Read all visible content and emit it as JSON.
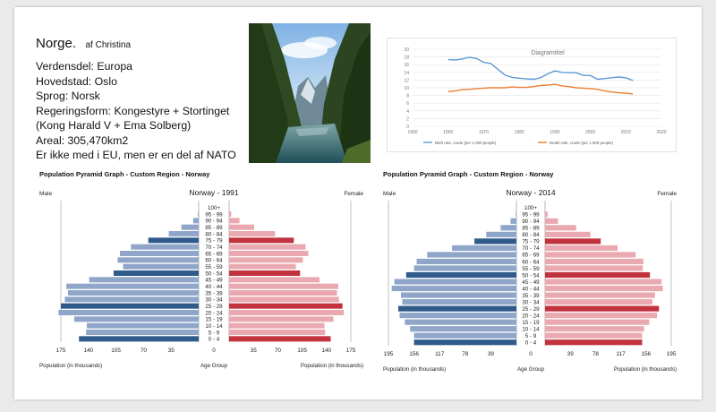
{
  "slide": {
    "title": "Norge.",
    "author": "af Christina",
    "info_lines": [
      "Verdensdel: Europa",
      "Hovedstad: Oslo",
      "Sprog: Norsk",
      "Regeringsform: Kongestyre + Stortinget",
      "(Kong Harald V + Ema Solberg)",
      "Areal: 305,470km2",
      "Er ikke med i EU, men er en del af NATO"
    ]
  },
  "photo": {
    "icon": "fjord-landscape-photo"
  },
  "chart_data": [
    {
      "type": "line",
      "title": "Diagramtitel",
      "x": [
        1960,
        1962,
        1964,
        1966,
        1968,
        1970,
        1972,
        1974,
        1976,
        1978,
        1980,
        1982,
        1984,
        1986,
        1988,
        1990,
        1992,
        1994,
        1996,
        1998,
        2000,
        2002,
        2004,
        2006,
        2008,
        2010,
        2012
      ],
      "xlim": [
        1950,
        2020
      ],
      "xticks": [
        "1950",
        "1960",
        "1970",
        "1980",
        "1990",
        "2000",
        "2010",
        "2020"
      ],
      "ylim": [
        0,
        20
      ],
      "yticks": [
        "0",
        "2",
        "4",
        "6",
        "8",
        "10",
        "12",
        "14",
        "16",
        "18",
        "20"
      ],
      "grid": true,
      "legend": "bottom",
      "series": [
        {
          "name": "Birth rate, crude (per 1,000 people)",
          "color": "#5b9bd5",
          "values": [
            17.3,
            17.2,
            17.5,
            17.9,
            17.6,
            16.6,
            16.3,
            14.8,
            13.3,
            12.7,
            12.5,
            12.3,
            12.2,
            12.6,
            13.6,
            14.4,
            14.0,
            13.9,
            13.9,
            13.2,
            13.2,
            12.2,
            12.4,
            12.6,
            12.8,
            12.6,
            11.9
          ]
        },
        {
          "name": "Death rate, crude (per 1,000 people)",
          "color": "#ed7d31",
          "values": [
            9.0,
            9.2,
            9.5,
            9.6,
            9.8,
            9.9,
            10.0,
            10.0,
            10.0,
            10.2,
            10.1,
            10.1,
            10.3,
            10.6,
            10.7,
            10.9,
            10.5,
            10.3,
            10.0,
            9.9,
            9.8,
            9.6,
            9.2,
            8.9,
            8.7,
            8.6,
            8.4
          ]
        }
      ]
    },
    {
      "type": "bar",
      "chart_title": "Population Pyramid Graph - Custom Region - Norway",
      "title": "Norway - 1991",
      "left_label": "Male",
      "right_label": "Female",
      "categories": [
        "0 - 4",
        "5 - 9",
        "10 - 14",
        "15 - 19",
        "20 - 24",
        "25 - 29",
        "30 - 34",
        "35 - 39",
        "40 - 44",
        "45 - 49",
        "50 - 54",
        "55 - 59",
        "60 - 64",
        "65 - 69",
        "70 - 74",
        "75 - 79",
        "80 - 84",
        "85 - 89",
        "90 - 94",
        "95 - 99",
        "100+"
      ],
      "series": [
        {
          "name": "Male",
          "values": [
            152,
            143,
            142,
            158,
            178,
            175,
            170,
            166,
            168,
            139,
            108,
            96,
            103,
            100,
            86,
            64,
            38,
            22,
            7,
            1,
            0
          ]
        },
        {
          "name": "Female",
          "values": [
            146,
            138,
            137,
            150,
            165,
            163,
            158,
            155,
            157,
            130,
            102,
            96,
            106,
            114,
            110,
            93,
            66,
            36,
            15,
            3,
            0
          ]
        }
      ],
      "ticks": [
        "175",
        "140",
        "105",
        "70",
        "35",
        "0",
        "35",
        "70",
        "105",
        "140",
        "175"
      ],
      "xmax": 175,
      "xlabel_left": "Population (in thousands)",
      "xlabel_center": "Age Group",
      "xlabel_right": "Population (in thousands)"
    },
    {
      "type": "bar",
      "chart_title": "Population Pyramid Graph - Custom Region - Norway",
      "title": "Norway - 2014",
      "left_label": "Male",
      "right_label": "Female",
      "categories": [
        "0 - 4",
        "5 - 9",
        "10 - 14",
        "15 - 19",
        "20 - 24",
        "25 - 29",
        "30 - 34",
        "35 - 39",
        "40 - 44",
        "45 - 49",
        "50 - 54",
        "55 - 59",
        "60 - 64",
        "65 - 69",
        "70 - 74",
        "75 - 79",
        "80 - 84",
        "85 - 89",
        "90 - 94",
        "95 - 99",
        "100+"
      ],
      "series": [
        {
          "name": "Male",
          "values": [
            156,
            156,
            162,
            170,
            178,
            180,
            174,
            176,
            190,
            186,
            168,
            156,
            152,
            136,
            98,
            64,
            46,
            24,
            9,
            1,
            0
          ]
        },
        {
          "name": "Female",
          "values": [
            150,
            150,
            153,
            161,
            173,
            176,
            166,
            170,
            182,
            180,
            162,
            151,
            152,
            140,
            112,
            86,
            70,
            48,
            20,
            4,
            0
          ]
        }
      ],
      "ticks": [
        "195",
        "156",
        "117",
        "78",
        "39",
        "0",
        "39",
        "78",
        "117",
        "156",
        "195"
      ],
      "xmax": 195,
      "xlabel_left": "Population (in thousands)",
      "xlabel_center": "Age Group",
      "xlabel_right": "Population (in thousands)"
    }
  ]
}
